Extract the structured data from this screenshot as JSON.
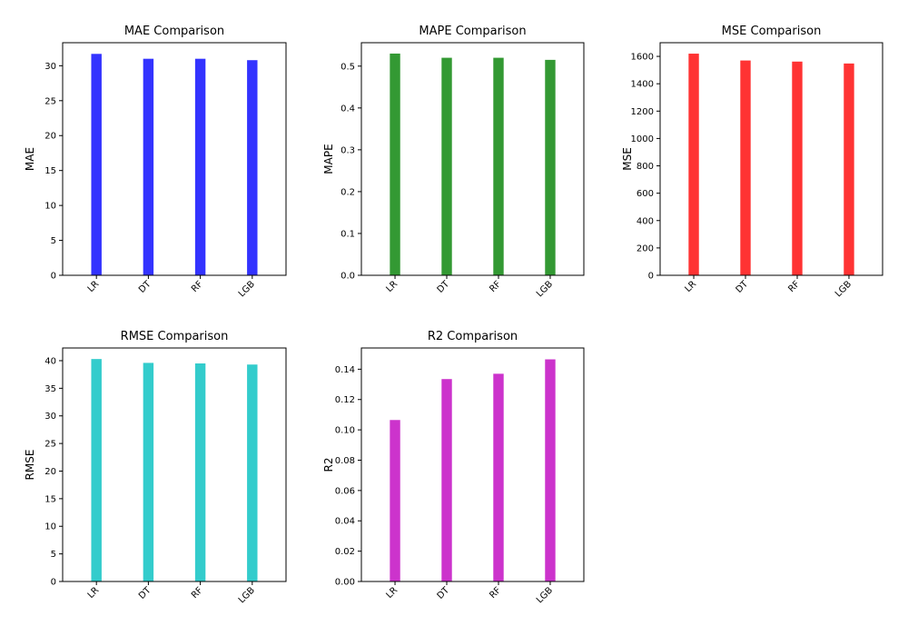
{
  "chart_data": [
    {
      "type": "bar",
      "title": "MAE Comparison",
      "xlabel": "",
      "ylabel": "MAE",
      "categories": [
        "LR",
        "DT",
        "RF",
        "LGB"
      ],
      "values": [
        31.7,
        31.0,
        31.0,
        30.8
      ],
      "ylim": [
        0,
        33.3
      ],
      "yticks": [
        0,
        5,
        10,
        15,
        20,
        25,
        30
      ],
      "ytick_labels": [
        "0",
        "5",
        "10",
        "15",
        "20",
        "25",
        "30"
      ],
      "color": "#3333ff"
    },
    {
      "type": "bar",
      "title": "MAPE Comparison",
      "xlabel": "",
      "ylabel": "MAPE",
      "categories": [
        "LR",
        "DT",
        "RF",
        "LGB"
      ],
      "values": [
        0.53,
        0.52,
        0.52,
        0.515
      ],
      "ylim": [
        0,
        0.556
      ],
      "yticks": [
        0,
        0.1,
        0.2,
        0.3,
        0.4,
        0.5
      ],
      "ytick_labels": [
        "0.0",
        "0.1",
        "0.2",
        "0.3",
        "0.4",
        "0.5"
      ],
      "color": "#339933"
    },
    {
      "type": "bar",
      "title": "MSE Comparison",
      "xlabel": "",
      "ylabel": "MSE",
      "categories": [
        "LR",
        "DT",
        "RF",
        "LGB"
      ],
      "values": [
        1620,
        1570,
        1562,
        1548
      ],
      "ylim": [
        0,
        1700
      ],
      "yticks": [
        0,
        200,
        400,
        600,
        800,
        1000,
        1200,
        1400,
        1600
      ],
      "ytick_labels": [
        "0",
        "200",
        "400",
        "600",
        "800",
        "1000",
        "1200",
        "1400",
        "1600"
      ],
      "color": "#ff3333"
    },
    {
      "type": "bar",
      "title": "RMSE Comparison",
      "xlabel": "",
      "ylabel": "RMSE",
      "categories": [
        "LR",
        "DT",
        "RF",
        "LGB"
      ],
      "values": [
        40.3,
        39.6,
        39.5,
        39.3
      ],
      "ylim": [
        0,
        42.3
      ],
      "yticks": [
        0,
        5,
        10,
        15,
        20,
        25,
        30,
        35,
        40
      ],
      "ytick_labels": [
        "0",
        "5",
        "10",
        "15",
        "20",
        "25",
        "30",
        "35",
        "40"
      ],
      "color": "#33cccc"
    },
    {
      "type": "bar",
      "title": "R2 Comparison",
      "xlabel": "",
      "ylabel": "R2",
      "categories": [
        "LR",
        "DT",
        "RF",
        "LGB"
      ],
      "values": [
        0.1065,
        0.1335,
        0.137,
        0.1465
      ],
      "ylim": [
        0,
        0.154
      ],
      "yticks": [
        0,
        0.02,
        0.04,
        0.06,
        0.08,
        0.1,
        0.12,
        0.14
      ],
      "ytick_labels": [
        "0.00",
        "0.02",
        "0.04",
        "0.06",
        "0.08",
        "0.10",
        "0.12",
        "0.14"
      ],
      "color": "#cc33cc"
    }
  ]
}
